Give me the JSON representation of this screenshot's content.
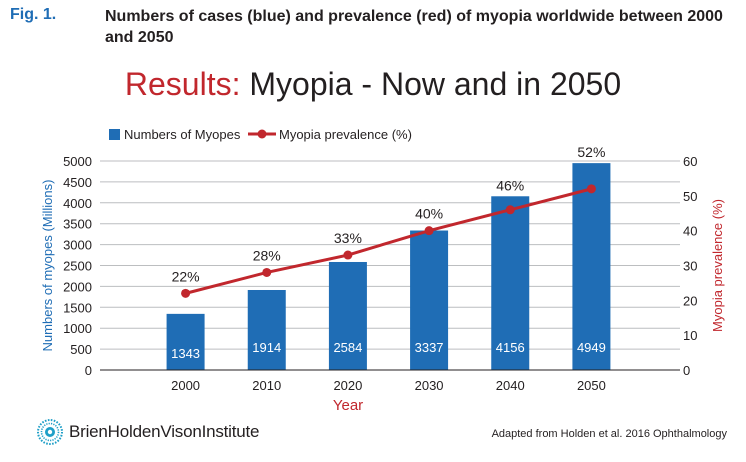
{
  "figure": {
    "label": "Fig. 1.",
    "caption": "Numbers of cases (blue) and prevalence (red) of myopia worldwide between 2000 and 2050"
  },
  "slide_title": {
    "accent": "Results:",
    "rest": " Myopia - Now and in 2050"
  },
  "footer": {
    "brand": "BrienHoldenVisonInstitute",
    "source": "Adapted from Holden et al. 2016 Ophthalmology"
  },
  "colors": {
    "bar": "#1f6db5",
    "line": "#c1272d",
    "accent_title": "#c1272d",
    "left_axis_label": "#1f6db5",
    "right_axis_label": "#c1272d"
  },
  "chart_data": {
    "type": "bar",
    "categories": [
      "2000",
      "2010",
      "2020",
      "2030",
      "2040",
      "2050"
    ],
    "xlabel": "Year",
    "ylabel": "Numbers of  myopes (Millions)",
    "y2label": "Myopia prevalence (%)",
    "ylim": [
      0,
      5000
    ],
    "y2lim": [
      0,
      60
    ],
    "yticks": [
      "0",
      "500",
      "1000",
      "1500",
      "2000",
      "2500",
      "3000",
      "3500",
      "4000",
      "4500",
      "5000"
    ],
    "y2ticks": [
      "0",
      "10",
      "20",
      "30",
      "40",
      "50",
      "60"
    ],
    "legend_position": "top-left",
    "grid": true,
    "series": [
      {
        "name": "Numbers of Myopes",
        "type": "bar",
        "axis": "left",
        "values": [
          1343,
          1914,
          2584,
          3337,
          4156,
          4949
        ],
        "labels": [
          "1343",
          "1914",
          "2584",
          "3337",
          "4156",
          "4949"
        ]
      },
      {
        "name": "Myopia prevalence (%)",
        "type": "line",
        "axis": "right",
        "values": [
          22,
          28,
          33,
          40,
          46,
          52
        ],
        "labels": [
          "22%",
          "28%",
          "33%",
          "40%",
          "46%",
          "52%"
        ]
      }
    ]
  }
}
